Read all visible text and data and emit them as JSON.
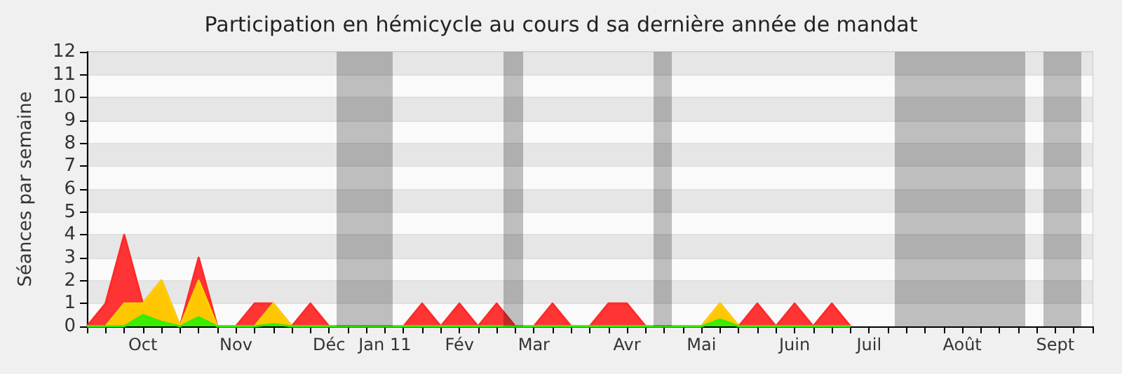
{
  "chart_data": {
    "type": "area",
    "title": "Participation en hémicycle au cours d sa dernière année de mandat",
    "ylabel": "Séances par semaine",
    "categories": [
      null,
      null,
      null,
      "Oct",
      null,
      null,
      null,
      null,
      "Nov",
      null,
      null,
      null,
      null,
      "Déc",
      null,
      null,
      "Jan 11",
      null,
      null,
      null,
      "Fév",
      null,
      null,
      null,
      "Mar",
      null,
      null,
      null,
      null,
      "Avr",
      null,
      null,
      null,
      "Mai",
      null,
      null,
      null,
      null,
      "Juin",
      null,
      null,
      null,
      "Juil",
      null,
      null,
      null,
      null,
      "Août",
      null,
      null,
      null,
      null,
      "Sept",
      null,
      null
    ],
    "series": [
      {
        "color": "#ff2a2a",
        "values": [
          0,
          1,
          4,
          1,
          2,
          0,
          3,
          0,
          0,
          1,
          1,
          0,
          1,
          0,
          0,
          0,
          0,
          0,
          1,
          0,
          1,
          0,
          1,
          0,
          0,
          1,
          0,
          0,
          1,
          1,
          0,
          0,
          0,
          0,
          1,
          0,
          1,
          0,
          1,
          0,
          1,
          0,
          null,
          null,
          null,
          null,
          null,
          null,
          null,
          null,
          null,
          null,
          null,
          null,
          null
        ]
      },
      {
        "color": "#ffd000",
        "values": [
          0,
          0,
          1,
          1,
          2,
          0,
          2,
          0,
          0,
          0,
          1,
          0,
          0,
          0,
          0,
          0,
          0,
          0,
          0,
          0,
          0,
          0,
          0,
          0,
          0,
          0,
          0,
          0,
          0,
          0,
          0,
          0,
          0,
          0,
          1,
          0,
          0,
          0,
          0,
          0,
          0,
          0,
          null,
          null,
          null,
          null,
          null,
          null,
          null,
          null,
          null,
          null,
          null,
          null,
          null
        ]
      },
      {
        "color": "#33ee00",
        "values": [
          0,
          0,
          0,
          0.5,
          0.2,
          0,
          0.4,
          0,
          0,
          0,
          0.1,
          0,
          0,
          0,
          0,
          0,
          0,
          0,
          0,
          0,
          0,
          0,
          0,
          0,
          0,
          0,
          0,
          0,
          0,
          0,
          0,
          0,
          0,
          0,
          0.3,
          0,
          0,
          0,
          0,
          0,
          0,
          0,
          null,
          null,
          null,
          null,
          null,
          null,
          null,
          null,
          null,
          null,
          null,
          null,
          null
        ]
      }
    ],
    "ylim": [
      0,
      12
    ],
    "yticks": [
      0,
      1,
      2,
      3,
      4,
      5,
      6,
      7,
      8,
      9,
      10,
      11,
      12
    ],
    "grid": "y",
    "marker": "none"
  }
}
